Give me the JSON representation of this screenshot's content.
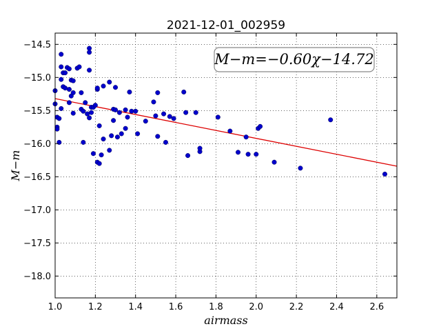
{
  "chart_data": {
    "type": "scatter",
    "title": "2021-12-01_002959",
    "xlabel": "airmass",
    "ylabel": "M−m",
    "xlim": [
      1.0,
      2.7
    ],
    "ylim": [
      -18.33,
      -14.33
    ],
    "y_inverted": true,
    "grid": true,
    "x_ticks": [
      1.0,
      1.2,
      1.4,
      1.6,
      1.8,
      2.0,
      2.2,
      2.4,
      2.6
    ],
    "x_tick_labels": [
      "1.0",
      "1.2",
      "1.4",
      "1.6",
      "1.8",
      "2.0",
      "2.2",
      "2.4",
      "2.6"
    ],
    "y_ticks": [
      -14.5,
      -15.0,
      -15.5,
      -16.0,
      -16.5,
      -17.0,
      -17.5,
      -18.0
    ],
    "y_tick_labels": [
      "−14.5",
      "−15.0",
      "−15.5",
      "−16.0",
      "−16.5",
      "−17.0",
      "−17.5",
      "−18.0"
    ],
    "annotation": "M−m=−0.60χ−14.72",
    "fit": {
      "slope": -0.6,
      "intercept": -14.72,
      "color": "#dd0000"
    },
    "marker_color": "#0000cc",
    "points": [
      [
        1.0,
        -15.2
      ],
      [
        1.0,
        -15.4
      ],
      [
        1.01,
        -15.6
      ],
      [
        1.01,
        -15.75
      ],
      [
        1.01,
        -15.78
      ],
      [
        1.02,
        -15.62
      ],
      [
        1.02,
        -15.98
      ],
      [
        1.03,
        -15.47
      ],
      [
        1.03,
        -15.03
      ],
      [
        1.03,
        -14.84
      ],
      [
        1.03,
        -14.65
      ],
      [
        1.04,
        -14.93
      ],
      [
        1.04,
        -15.14
      ],
      [
        1.05,
        -15.16
      ],
      [
        1.05,
        -14.93
      ],
      [
        1.06,
        -14.85
      ],
      [
        1.07,
        -14.87
      ],
      [
        1.07,
        -15.18
      ],
      [
        1.07,
        -15.38
      ],
      [
        1.08,
        -15.28
      ],
      [
        1.08,
        -15.04
      ],
      [
        1.09,
        -15.05
      ],
      [
        1.09,
        -15.23
      ],
      [
        1.09,
        -15.54
      ],
      [
        1.11,
        -14.86
      ],
      [
        1.12,
        -14.84
      ],
      [
        1.13,
        -15.48
      ],
      [
        1.13,
        -15.23
      ],
      [
        1.14,
        -15.51
      ],
      [
        1.14,
        -15.98
      ],
      [
        1.15,
        -15.38
      ],
      [
        1.16,
        -15.55
      ],
      [
        1.17,
        -14.56
      ],
      [
        1.17,
        -14.62
      ],
      [
        1.17,
        -14.89
      ],
      [
        1.17,
        -15.61
      ],
      [
        1.18,
        -15.45
      ],
      [
        1.18,
        -15.53
      ],
      [
        1.19,
        -15.45
      ],
      [
        1.19,
        -16.15
      ],
      [
        1.2,
        -15.42
      ],
      [
        1.21,
        -15.18
      ],
      [
        1.21,
        -15.16
      ],
      [
        1.21,
        -16.28
      ],
      [
        1.22,
        -15.73
      ],
      [
        1.22,
        -16.3
      ],
      [
        1.23,
        -16.17
      ],
      [
        1.24,
        -15.93
      ],
      [
        1.24,
        -15.13
      ],
      [
        1.27,
        -15.07
      ],
      [
        1.27,
        -16.1
      ],
      [
        1.28,
        -15.88
      ],
      [
        1.29,
        -15.65
      ],
      [
        1.29,
        -15.48
      ],
      [
        1.3,
        -15.15
      ],
      [
        1.3,
        -15.49
      ],
      [
        1.31,
        -15.9
      ],
      [
        1.32,
        -15.53
      ],
      [
        1.33,
        -15.85
      ],
      [
        1.35,
        -15.49
      ],
      [
        1.35,
        -15.77
      ],
      [
        1.36,
        -15.6
      ],
      [
        1.37,
        -15.22
      ],
      [
        1.38,
        -15.51
      ],
      [
        1.4,
        -15.51
      ],
      [
        1.41,
        -15.85
      ],
      [
        1.45,
        -15.66
      ],
      [
        1.49,
        -15.37
      ],
      [
        1.5,
        -15.58
      ],
      [
        1.51,
        -15.23
      ],
      [
        1.51,
        -15.89
      ],
      [
        1.54,
        -15.55
      ],
      [
        1.55,
        -15.98
      ],
      [
        1.57,
        -15.59
      ],
      [
        1.59,
        -15.62
      ],
      [
        1.64,
        -15.22
      ],
      [
        1.65,
        -15.53
      ],
      [
        1.66,
        -16.18
      ],
      [
        1.7,
        -15.53
      ],
      [
        1.72,
        -16.12
      ],
      [
        1.72,
        -16.07
      ],
      [
        1.81,
        -15.6
      ],
      [
        1.87,
        -15.81
      ],
      [
        1.91,
        -16.13
      ],
      [
        1.95,
        -15.9
      ],
      [
        1.96,
        -16.16
      ],
      [
        2.0,
        -16.16
      ],
      [
        2.01,
        -15.77
      ],
      [
        2.02,
        -15.74
      ],
      [
        2.09,
        -16.28
      ],
      [
        2.22,
        -16.37
      ],
      [
        2.37,
        -15.64
      ],
      [
        2.64,
        -16.46
      ]
    ]
  }
}
